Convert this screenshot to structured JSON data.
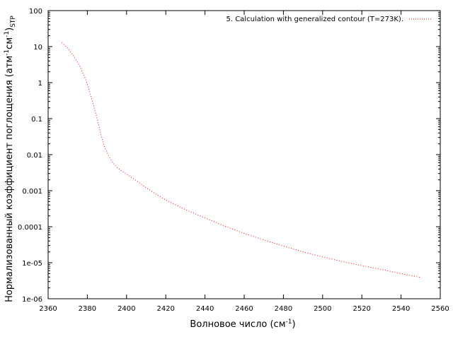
{
  "chart_data": {
    "type": "line",
    "xlabel": "Волновое число (см",
    "xlabel_sup": "-1",
    "xlabel_tail": ")",
    "ylabel_parts": [
      "Нормализованный коэффициент поглощения (атм",
      "-1",
      "см",
      "-1",
      ")",
      "STP"
    ],
    "x_scale": "linear",
    "y_scale": "log",
    "xlim": [
      2360,
      2560
    ],
    "ylim": [
      1e-06,
      100
    ],
    "x_ticks": [
      2360,
      2380,
      2400,
      2420,
      2440,
      2460,
      2480,
      2500,
      2520,
      2540,
      2560
    ],
    "x_tick_labels": [
      "2360",
      "2380",
      "2400",
      "2420",
      "2440",
      "2460",
      "2480",
      "2500",
      "2520",
      "2540",
      "2560"
    ],
    "y_ticks": [
      1e-06,
      1e-05,
      0.0001,
      0.001,
      0.01,
      0.1,
      1,
      10,
      100
    ],
    "y_tick_labels": [
      "1e-06",
      "1e-05",
      "0.0001",
      "0.001",
      "0.01",
      "0.1",
      "1",
      "10",
      "100"
    ],
    "legend_position": "top-right",
    "grid": false,
    "series": [
      {
        "name": "5. Calculation with generalized contour (T=273K).",
        "color": "#ff0000",
        "line_style": "dotted",
        "x": [
          2367,
          2370,
          2373,
          2376,
          2379,
          2381,
          2383,
          2385,
          2387,
          2389,
          2391,
          2393,
          2395,
          2397,
          2400,
          2405,
          2410,
          2415,
          2420,
          2430,
          2440,
          2450,
          2460,
          2470,
          2480,
          2490,
          2500,
          2510,
          2520,
          2530,
          2540,
          2550
        ],
        "y": [
          13,
          9,
          5.5,
          3,
          1.3,
          0.6,
          0.25,
          0.1,
          0.035,
          0.015,
          0.009,
          0.006,
          0.0045,
          0.0037,
          0.0029,
          0.0019,
          0.0012,
          0.0008,
          0.00055,
          0.0003,
          0.000175,
          0.000105,
          6.5e-05,
          4.3e-05,
          2.9e-05,
          2e-05,
          1.45e-05,
          1.08e-05,
          8.3e-06,
          6.5e-06,
          5e-06,
          3.9e-06
        ]
      }
    ]
  }
}
